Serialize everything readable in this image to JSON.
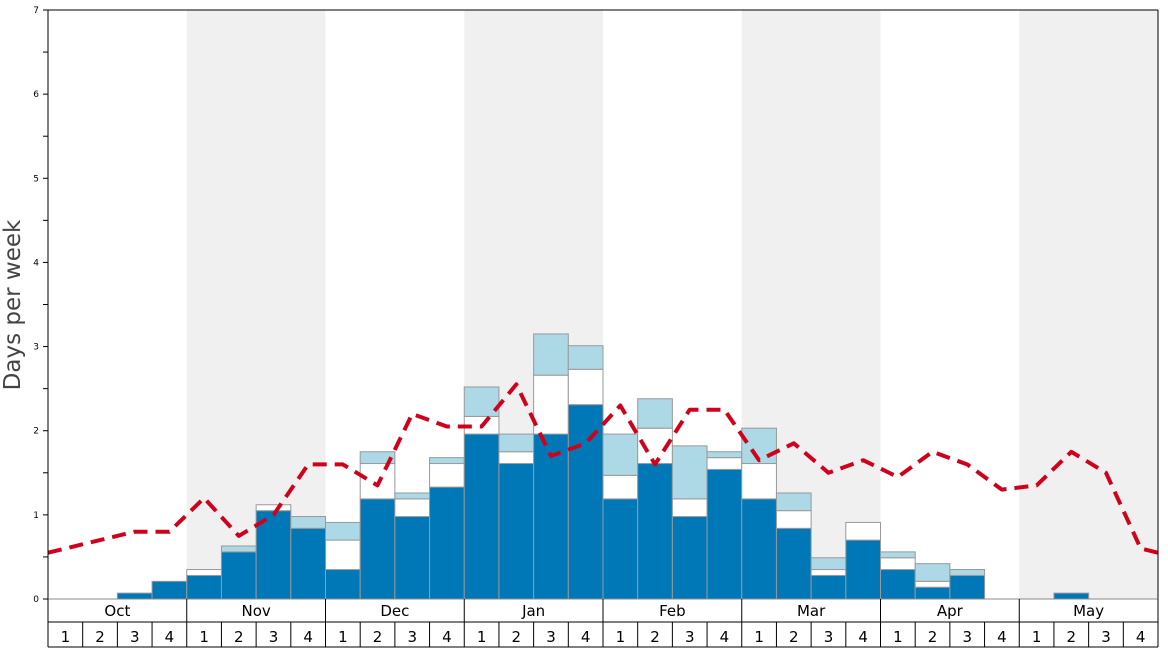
{
  "chart_data": {
    "type": "bar",
    "title": "",
    "ylabel": "Days per week",
    "xlabel": "",
    "ylim": [
      0,
      7
    ],
    "y_ticks": [
      "0",
      "1",
      "2",
      "3",
      "4",
      "5",
      "6",
      "7"
    ],
    "months": [
      "Oct",
      "Nov",
      "Dec",
      "Jan",
      "Feb",
      "Mar",
      "Apr",
      "May"
    ],
    "week_labels": [
      "1",
      "2",
      "3",
      "4"
    ],
    "stacked": true,
    "grid": false,
    "colors": {
      "bar_dark": "#0077b6",
      "bar_white": "#ffffff",
      "bar_light": "#add8e6",
      "bar_stroke": "#999999",
      "line": "#d0021b",
      "shade": "#f0f0f0"
    },
    "series": [
      {
        "values": [
          0,
          0,
          0.07,
          0.21,
          0.28,
          0.56,
          1.05,
          0.84,
          0.35,
          1.19,
          0.98,
          1.33,
          1.96,
          1.61,
          1.96,
          2.31,
          1.19,
          1.61,
          0.98,
          1.54,
          1.19,
          0.84,
          0.28,
          0.7,
          0.35,
          0.14,
          0.28,
          0,
          0,
          0.07,
          0,
          0
        ]
      },
      {
        "values": [
          0,
          0,
          0,
          0,
          0.07,
          0,
          0.07,
          0,
          0.35,
          0.42,
          0.21,
          0.28,
          0.21,
          0.14,
          0.7,
          0.42,
          0.28,
          0.42,
          0.21,
          0.14,
          0.42,
          0.21,
          0.07,
          0.21,
          0.14,
          0.07,
          0,
          0,
          0,
          0,
          0,
          0
        ]
      },
      {
        "values": [
          0,
          0,
          0,
          0,
          0,
          0.07,
          0,
          0.14,
          0.21,
          0.14,
          0.07,
          0.07,
          0.35,
          0.21,
          0.49,
          0.28,
          0.49,
          0.35,
          0.63,
          0.07,
          0.42,
          0.21,
          0.14,
          0,
          0.07,
          0.21,
          0.07,
          0,
          0,
          0,
          0,
          0
        ]
      },
      {
        "values": [
          0.6,
          0.7,
          0.8,
          0.8,
          1.2,
          0.75,
          1.0,
          1.6,
          1.6,
          1.35,
          2.2,
          2.05,
          2.05,
          2.55,
          1.7,
          1.85,
          2.3,
          1.6,
          2.25,
          2.25,
          1.65,
          1.85,
          1.5,
          1.65,
          1.45,
          1.75,
          1.6,
          1.3,
          1.35,
          1.75,
          1.5,
          0.6
        ]
      }
    ]
  }
}
